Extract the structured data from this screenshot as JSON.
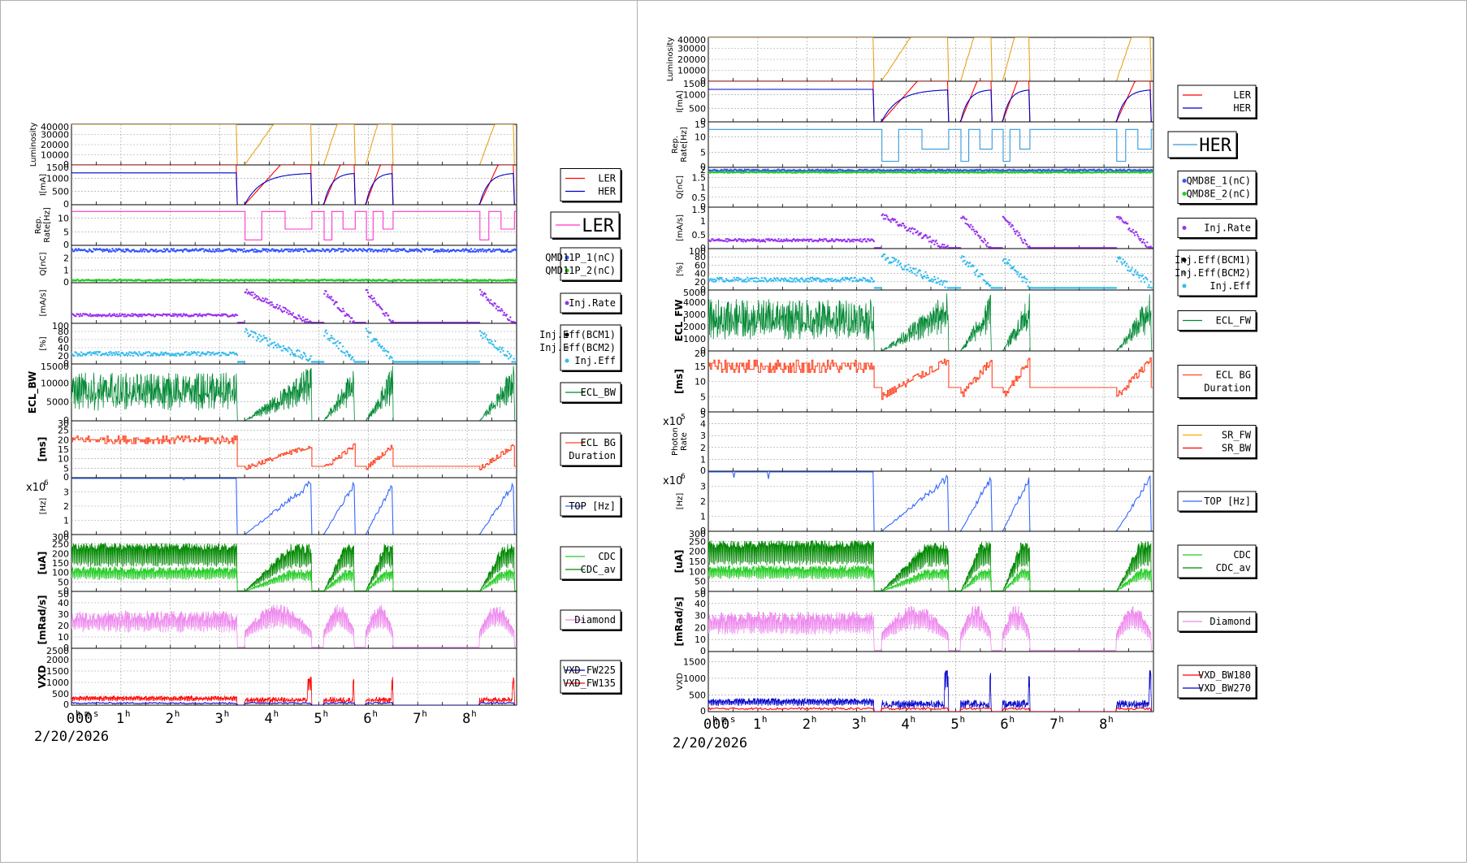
{
  "colors": {
    "lum": "#e6a21a",
    "ler": "#ff0000",
    "her": "#0000cc",
    "rep_ler": "#ff33cc",
    "rep_her": "#3399dd",
    "q1": "#3355ff",
    "q2": "#22cc22",
    "inj": "#9933ee",
    "eff": "#33bbee",
    "ecl": "#008833",
    "dur": "#ff4422",
    "top": "#3366ff",
    "cdc": "#22cc22",
    "cdc_av": "#008800",
    "dia": "#ee88ee",
    "vxd_a": "#0000cc",
    "vxd_b": "#ff0000",
    "sr_fw": "#ffaa00",
    "sr_bw": "#ff0000"
  },
  "time_axis": {
    "ticks": [
      {
        "base": "0",
        "sup": "h"
      },
      {
        "base": "0",
        "sup": "m"
      },
      {
        "base": "0",
        "sup": "s"
      },
      {
        "base": "1",
        "sup": "h"
      },
      {
        "base": "2",
        "sup": "h"
      },
      {
        "base": "3",
        "sup": "h"
      },
      {
        "base": "4",
        "sup": "h"
      },
      {
        "base": "5",
        "sup": "h"
      },
      {
        "base": "6",
        "sup": "h"
      },
      {
        "base": "7",
        "sup": "h"
      },
      {
        "base": "8",
        "sup": "h"
      }
    ],
    "date": "2/20/2026"
  },
  "panels": [
    {
      "id": "left",
      "rows": [
        {
          "key": "lum",
          "ylabel": "Luminosity",
          "ymax": 40000,
          "yticks": [
            "40000",
            "30000",
            "20000",
            "10000",
            "0"
          ],
          "legend": [],
          "bold_label": false
        },
        {
          "key": "cur",
          "ylabel": "I[mA]",
          "ymax": 1500,
          "yticks": [
            "1500",
            "1000",
            "500",
            "0"
          ],
          "legend": [
            {
              "name": "LER",
              "color": "#ff0000",
              "mark": "line"
            },
            {
              "name": "HER",
              "color": "#0000cc",
              "mark": "line"
            }
          ],
          "bold_label": false
        },
        {
          "key": "rep",
          "ylabel": "Rep. Rate[Hz]",
          "ymax": 15,
          "yticks": [
            "10",
            "5",
            "0"
          ],
          "legend": [
            {
              "name": "LER",
              "color": "#ff33cc",
              "mark": "line",
              "big": true
            }
          ],
          "bold_label": false
        },
        {
          "key": "q",
          "ylabel": "Q[nC]",
          "ymax": 3,
          "yticks": [
            "2",
            "1",
            "0"
          ],
          "legend": [
            {
              "name": "QMD11P_1(nC)",
              "color": "#3355ff",
              "mark": "dot"
            },
            {
              "name": "QMD11P_2(nC)",
              "color": "#22cc22",
              "mark": "dot"
            }
          ],
          "bold_label": false
        },
        {
          "key": "inj",
          "ylabel": "[mA/s]",
          "ymax": 1.5,
          "yticks": [],
          "legend": [
            {
              "name": "Inj.Rate",
              "color": "#9933ee",
              "mark": "dot"
            }
          ],
          "bold_label": false
        },
        {
          "key": "eff",
          "ylabel": "[%]",
          "ymax": 100,
          "yticks": [
            "100",
            "80",
            "60",
            "40",
            "20",
            "0"
          ],
          "legend": [
            {
              "name": "Inj.Eff(BCM1)",
              "color": "#000000",
              "mark": "dot"
            },
            {
              "name": "Inj.Eff(BCM2)",
              "color": "#999999",
              "mark": "dot"
            },
            {
              "name": "Inj.Eff",
              "color": "#33bbee",
              "mark": "dot"
            }
          ],
          "bold_label": false
        },
        {
          "key": "ecl",
          "ylabel": "ECL_BW",
          "ymax": 15000,
          "yticks": [
            "15000",
            "10000",
            "5000",
            "0"
          ],
          "legend": [
            {
              "name": "ECL_BW",
              "color": "#008833",
              "mark": "line"
            }
          ],
          "bold_label": true
        },
        {
          "key": "dur",
          "ylabel": "[ms]",
          "ymax": 30,
          "yticks": [
            "30",
            "25",
            "20",
            "15",
            "10",
            "5",
            "0"
          ],
          "legend": [
            {
              "name": "ECL BG",
              "color": "#ff4422",
              "mark": "line"
            },
            {
              "name": "Duration",
              "color": "",
              "mark": "none"
            }
          ],
          "bold_label": true
        },
        {
          "key": "top",
          "ylabel": "[Hz]",
          "ymax": 4,
          "yticks": [
            "3",
            "2",
            "1",
            "0"
          ],
          "legend": [
            {
              "name": "TOP [Hz]",
              "color": "#3366ff",
              "mark": "line"
            }
          ],
          "bold_label": false,
          "exp": "x10",
          "exp_sup": "6"
        },
        {
          "key": "cdc",
          "ylabel": "[uA]",
          "ymax": 300,
          "yticks": [
            "300",
            "250",
            "200",
            "150",
            "100",
            "50",
            "0"
          ],
          "legend": [
            {
              "name": "CDC",
              "color": "#22cc22",
              "mark": "line"
            },
            {
              "name": "CDC_av",
              "color": "#008800",
              "mark": "line"
            }
          ],
          "bold_label": true
        },
        {
          "key": "dia",
          "ylabel": "[mRad/s]",
          "ymax": 50,
          "yticks": [
            "50",
            "40",
            "30",
            "20",
            "10",
            "0"
          ],
          "legend": [
            {
              "name": "Diamond",
              "color": "#ee88ee",
              "mark": "line"
            }
          ],
          "bold_label": true
        },
        {
          "key": "vxd",
          "ylabel": "VXD",
          "ymax": 2500,
          "yticks": [
            "2500",
            "2000",
            "1500",
            "1000",
            "500",
            "0"
          ],
          "legend": [
            {
              "name": "VXD_FW225",
              "color": "#0000cc",
              "mark": "line"
            },
            {
              "name": "VXD_FW135",
              "color": "#ff0000",
              "mark": "line"
            }
          ],
          "bold_label": true
        }
      ]
    },
    {
      "id": "right",
      "rows": [
        {
          "key": "lum",
          "ylabel": "Luminosity",
          "ymax": 40000,
          "yticks": [
            "40000",
            "30000",
            "20000",
            "10000",
            "0"
          ],
          "legend": [],
          "bold_label": false
        },
        {
          "key": "cur",
          "ylabel": "I[mA]",
          "ymax": 1500,
          "yticks": [
            "1500",
            "1000",
            "500",
            "0"
          ],
          "legend": [
            {
              "name": "LER",
              "color": "#ff0000",
              "mark": "line"
            },
            {
              "name": "HER",
              "color": "#0000cc",
              "mark": "line"
            }
          ],
          "bold_label": false
        },
        {
          "key": "rep",
          "ylabel": "Rep. Rate[Hz]",
          "ymax": 15,
          "yticks": [
            "15",
            "10",
            "5",
            "0"
          ],
          "legend": [
            {
              "name": "HER",
              "color": "#3399dd",
              "mark": "line",
              "big": true
            }
          ],
          "bold_label": false
        },
        {
          "key": "q",
          "ylabel": "Q[nC]",
          "ymax": 2,
          "yticks": [
            "2",
            "1.5",
            "1",
            "0.5",
            "0"
          ],
          "legend": [
            {
              "name": "QMD8E_1(nC)",
              "color": "#3355ff",
              "mark": "dot"
            },
            {
              "name": "QMD8E_2(nC)",
              "color": "#22cc22",
              "mark": "dot"
            }
          ],
          "bold_label": false
        },
        {
          "key": "inj",
          "ylabel": "[mA/s]",
          "ymax": 1.5,
          "yticks": [
            "1.5",
            "1",
            "0.5",
            "0"
          ],
          "legend": [
            {
              "name": "Inj.Rate",
              "color": "#9933ee",
              "mark": "dot"
            }
          ],
          "bold_label": false
        },
        {
          "key": "eff",
          "ylabel": "[%]",
          "ymax": 100,
          "yticks": [
            "100",
            "80",
            "60",
            "40",
            "20",
            "0"
          ],
          "legend": [
            {
              "name": "Inj.Eff(BCM1)",
              "color": "#000000",
              "mark": "dot"
            },
            {
              "name": "Inj.Eff(BCM2)",
              "color": "#999999",
              "mark": "dot"
            },
            {
              "name": "Inj.Eff",
              "color": "#33bbee",
              "mark": "dot"
            }
          ],
          "bold_label": false
        },
        {
          "key": "ecl",
          "ylabel": "ECL_FW",
          "ymax": 5000,
          "yticks": [
            "5000",
            "4000",
            "3000",
            "2000",
            "1000",
            "0"
          ],
          "legend": [
            {
              "name": "ECL_FW",
              "color": "#008833",
              "mark": "line"
            }
          ],
          "bold_label": true
        },
        {
          "key": "dur",
          "ylabel": "[ms]",
          "ymax": 20,
          "yticks": [
            "20",
            "15",
            "10",
            "5",
            "0"
          ],
          "legend": [
            {
              "name": "ECL BG",
              "color": "#ff4422",
              "mark": "line"
            },
            {
              "name": "Duration",
              "color": "",
              "mark": "none"
            }
          ],
          "bold_label": true
        },
        {
          "key": "photon",
          "ylabel": "Photon Rate",
          "ymax": 5,
          "yticks": [
            "5",
            "4",
            "3",
            "2",
            "1",
            "0"
          ],
          "legend": [
            {
              "name": "SR_FW",
              "color": "#ffaa00",
              "mark": "line"
            },
            {
              "name": "SR_BW",
              "color": "#ff0000",
              "mark": "line"
            }
          ],
          "bold_label": false,
          "exp": "x10",
          "exp_sup": "5"
        },
        {
          "key": "top",
          "ylabel": "[Hz]",
          "ymax": 4,
          "yticks": [
            "3",
            "2",
            "1",
            "0"
          ],
          "legend": [
            {
              "name": "TOP [Hz]",
              "color": "#3366ff",
              "mark": "line"
            }
          ],
          "bold_label": false,
          "exp": "x10",
          "exp_sup": "6"
        },
        {
          "key": "cdc",
          "ylabel": "[uA]",
          "ymax": 300,
          "yticks": [
            "300",
            "250",
            "200",
            "150",
            "100",
            "50",
            "0"
          ],
          "legend": [
            {
              "name": "CDC",
              "color": "#22cc22",
              "mark": "line"
            },
            {
              "name": "CDC_av",
              "color": "#008800",
              "mark": "line"
            }
          ],
          "bold_label": true
        },
        {
          "key": "dia",
          "ylabel": "[mRad/s]",
          "ymax": 50,
          "yticks": [
            "50",
            "40",
            "30",
            "20",
            "10",
            "0"
          ],
          "legend": [
            {
              "name": "Diamond",
              "color": "#ee88ee",
              "mark": "line"
            }
          ],
          "bold_label": true
        },
        {
          "key": "vxd",
          "ylabel": "VXD",
          "ymax": 1800,
          "yticks": [
            "1500",
            "1000",
            "500",
            "0"
          ],
          "legend": [
            {
              "name": "VXD_BW180",
              "color": "#ff0000",
              "mark": "line"
            },
            {
              "name": "VXD_BW270",
              "color": "#0000cc",
              "mark": "line"
            }
          ],
          "bold_label": false
        }
      ]
    }
  ],
  "chart_data": {
    "type": "line",
    "x_unit": "hours",
    "xlim": [
      0,
      9
    ],
    "beam_segments_hours": [
      [
        0,
        3.35
      ],
      [
        3.5,
        4.85
      ],
      [
        5.1,
        5.72
      ],
      [
        5.95,
        6.5
      ],
      [
        8.25,
        8.95
      ]
    ],
    "luminosity_plateau": 42000,
    "ler_current_plateau_mA": 1550,
    "her_current_plateau_mA": 1200
  }
}
